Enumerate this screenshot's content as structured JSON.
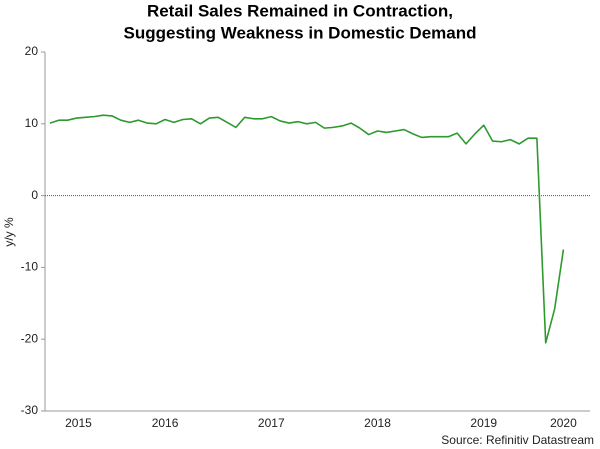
{
  "chart_data": {
    "type": "line",
    "title": "Retail Sales Remained in Contraction,",
    "subtitle": "Suggesting Weakness in Domestic Demand",
    "y_label": "y/y %",
    "source": "Source: Refinitiv Datastream",
    "x": [
      2015.417,
      2015.5,
      2015.583,
      2015.667,
      2015.75,
      2015.833,
      2015.917,
      2016.0,
      2016.083,
      2016.167,
      2016.25,
      2016.333,
      2016.417,
      2016.5,
      2016.583,
      2016.667,
      2016.75,
      2016.833,
      2016.917,
      2017.0,
      2017.083,
      2017.167,
      2017.25,
      2017.333,
      2017.417,
      2017.5,
      2017.583,
      2017.667,
      2017.75,
      2017.833,
      2017.917,
      2018.0,
      2018.083,
      2018.167,
      2018.25,
      2018.333,
      2018.417,
      2018.5,
      2018.583,
      2018.667,
      2018.75,
      2018.833,
      2018.917,
      2019.0,
      2019.083,
      2019.167,
      2019.25,
      2019.333,
      2019.417,
      2019.5,
      2019.583,
      2019.667,
      2019.75,
      2019.833,
      2019.917,
      2020.0,
      2020.083,
      2020.167,
      2020.25
    ],
    "series": [
      {
        "name": "Retail sales",
        "color": "#2e9a2e",
        "values": [
          10.1,
          10.5,
          10.5,
          10.8,
          10.9,
          11.0,
          11.2,
          11.1,
          10.5,
          10.2,
          10.5,
          10.1,
          10.0,
          10.6,
          10.2,
          10.6,
          10.7,
          10.0,
          10.8,
          10.9,
          10.2,
          9.5,
          10.9,
          10.7,
          10.7,
          11.0,
          10.4,
          10.1,
          10.3,
          10.0,
          10.2,
          9.4,
          9.5,
          9.7,
          10.1,
          9.4,
          8.5,
          9.0,
          8.8,
          9.0,
          9.2,
          8.6,
          8.1,
          8.2,
          8.2,
          8.2,
          8.7,
          7.2,
          8.6,
          9.8,
          7.6,
          7.5,
          7.8,
          7.2,
          8.0,
          8.0,
          -20.5,
          -15.8,
          -7.5
        ]
      }
    ],
    "xlim": [
      2015.37,
      2020.5
    ],
    "xticks": [
      {
        "value": 2015.685,
        "label": "2015"
      },
      {
        "value": 2016.5,
        "label": "2016"
      },
      {
        "value": 2017.5,
        "label": "2017"
      },
      {
        "value": 2018.5,
        "label": "2018"
      },
      {
        "value": 2019.5,
        "label": "2019"
      },
      {
        "value": 2020.25,
        "label": "2020"
      }
    ],
    "ylim": [
      -30,
      20
    ],
    "yticks": [
      -30,
      -20,
      -10,
      0,
      10,
      20
    ],
    "zero_line": true
  }
}
